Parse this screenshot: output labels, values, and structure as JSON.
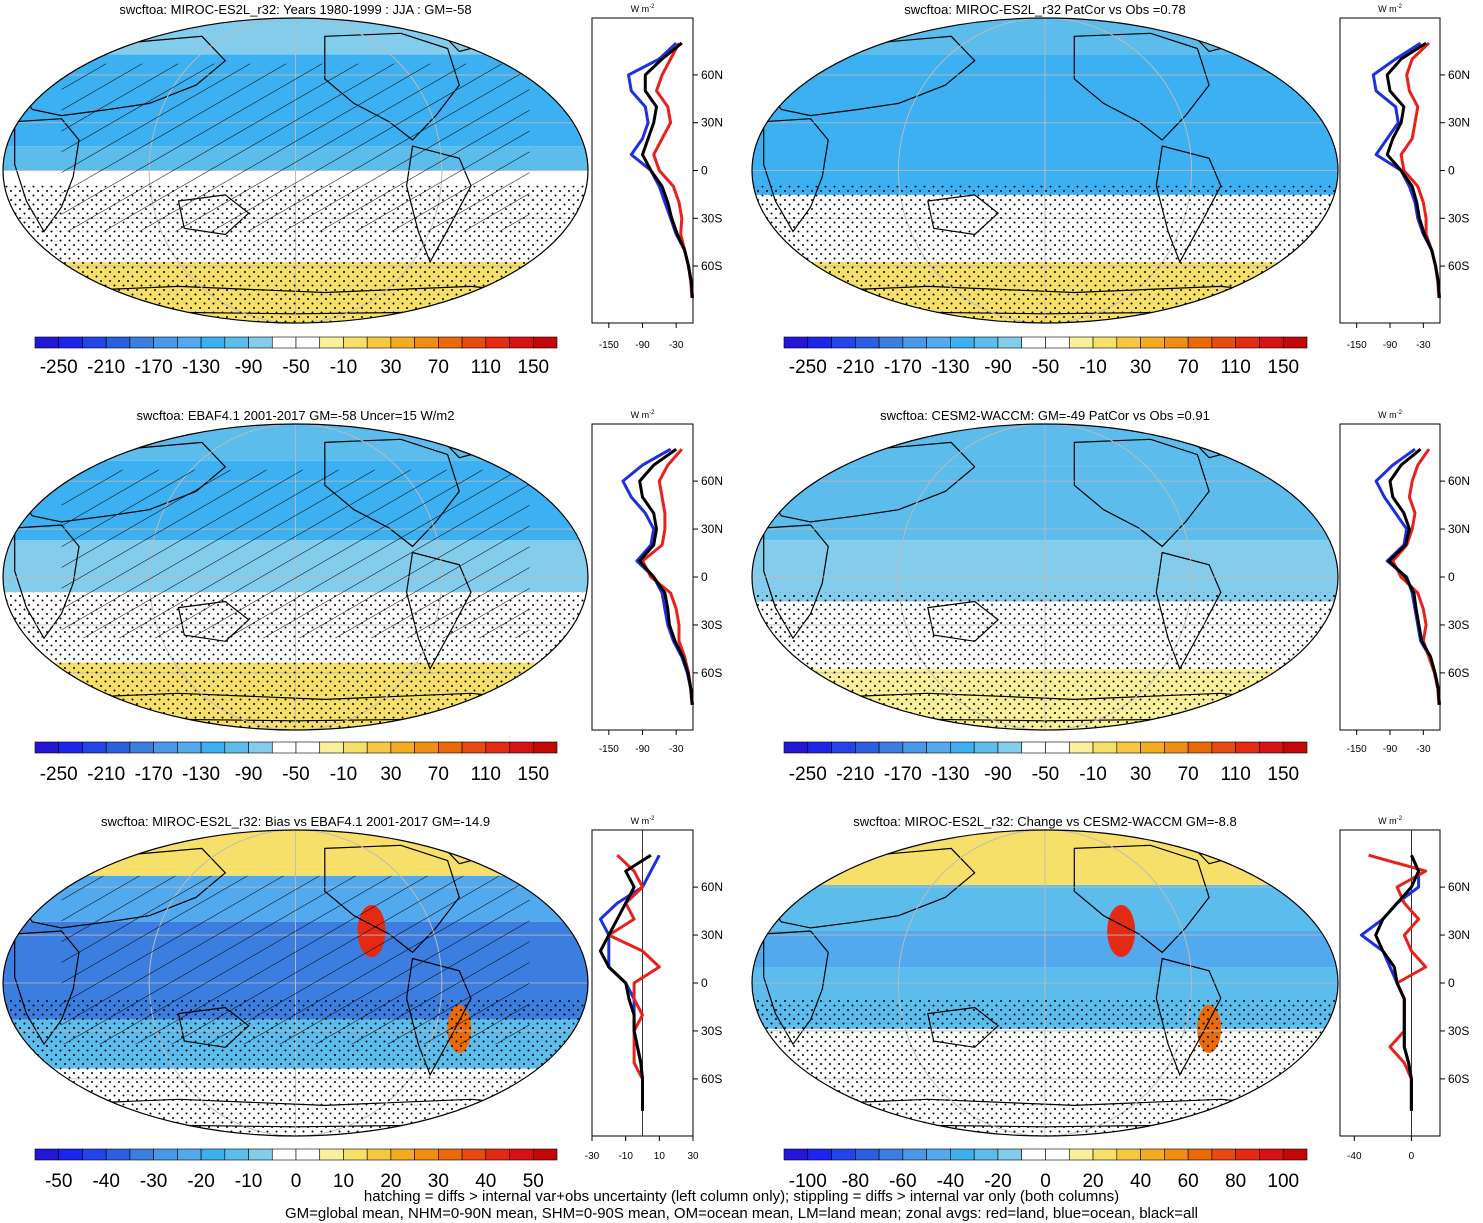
{
  "figure": {
    "footer_lines": [
      "hatching = diffs > internal var+obs uncertainty (left column only); stippling = diffs > internal var only (both columns)",
      "GM=global mean, NHM=0-90N mean, SHM=0-90S mean, OM=ocean mean, LM=land mean; zonal avgs: red=land, blue=ocean, black=all"
    ],
    "colors": {
      "land": "#e8211c",
      "ocean": "#1f2fe0",
      "all": "#000000"
    },
    "zonal_units": "W m",
    "zonal_units_sup": "-2",
    "lat_tick_labels": [
      "60N",
      "30N",
      "0",
      "30S",
      "60S"
    ]
  },
  "chart_data": [
    {
      "type": "heatmap",
      "title": "swcftoa: MIROC-ES2L_r32: Years 1980-1999 : JJA : GM=-58",
      "colorbar_labels": [
        "-250",
        "-210",
        "-170",
        "-130",
        "-90",
        "-50",
        "-10",
        "30",
        "70",
        "110",
        "150"
      ],
      "colorbar_range": [
        -270,
        170
      ],
      "zonal_xticks": [
        "-150",
        "-90",
        "-30"
      ],
      "zonal_xrange": [
        -180,
        0
      ],
      "lats": [
        80,
        70,
        60,
        50,
        40,
        30,
        20,
        10,
        0,
        -10,
        -20,
        -30,
        -40,
        -50,
        -60,
        -70,
        -80
      ],
      "zonal_land": [
        -25,
        -40,
        -55,
        -65,
        -45,
        -40,
        -55,
        -70,
        -60,
        -35,
        -25,
        -20,
        -22,
        -15,
        -8,
        -4,
        -2
      ],
      "zonal_ocean": [
        -30,
        -60,
        -115,
        -110,
        -85,
        -80,
        -90,
        -110,
        -75,
        -60,
        -50,
        -40,
        -30,
        -15,
        -8,
        -3,
        -1
      ],
      "zonal_all": [
        -20,
        -55,
        -85,
        -85,
        -65,
        -70,
        -80,
        -90,
        -75,
        -55,
        -45,
        -38,
        -28,
        -15,
        -8,
        -3,
        -1
      ],
      "stipple": true,
      "hatch": true,
      "bias": false
    },
    {
      "type": "heatmap",
      "title": "swcftoa: MIROC-ES2L_r32 PatCor vs Obs =0.78",
      "colorbar_labels": [
        "-250",
        "-210",
        "-170",
        "-130",
        "-90",
        "-50",
        "-10",
        "30",
        "70",
        "110",
        "150"
      ],
      "colorbar_range": [
        -270,
        170
      ],
      "zonal_xticks": [
        "-150",
        "-90",
        "-30"
      ],
      "zonal_xrange": [
        -180,
        0
      ],
      "lats": [
        80,
        70,
        60,
        50,
        40,
        30,
        20,
        10,
        0,
        -10,
        -20,
        -30,
        -40,
        -50,
        -60,
        -70,
        -80
      ],
      "zonal_land": [
        -20,
        -50,
        -60,
        -55,
        -40,
        -45,
        -50,
        -70,
        -65,
        -40,
        -30,
        -25,
        -25,
        -15,
        -8,
        -4,
        -2
      ],
      "zonal_ocean": [
        -35,
        -80,
        -120,
        -115,
        -80,
        -75,
        -95,
        -115,
        -70,
        -55,
        -45,
        -40,
        -30,
        -15,
        -8,
        -3,
        -1
      ],
      "zonal_all": [
        -25,
        -70,
        -95,
        -90,
        -65,
        -70,
        -85,
        -95,
        -70,
        -50,
        -42,
        -37,
        -28,
        -15,
        -8,
        -3,
        -1
      ],
      "stipple": true,
      "hatch": false,
      "bias": false
    },
    {
      "type": "heatmap",
      "title": "swcftoa: EBAF4.1 2001-2017 GM=-58 Uncer=15 W/m2",
      "colorbar_labels": [
        "-250",
        "-210",
        "-170",
        "-130",
        "-90",
        "-50",
        "-10",
        "30",
        "70",
        "110",
        "150"
      ],
      "colorbar_range": [
        -270,
        170
      ],
      "zonal_xticks": [
        "-150",
        "-90",
        "-30"
      ],
      "zonal_xrange": [
        -180,
        0
      ],
      "lats": [
        80,
        70,
        60,
        50,
        40,
        30,
        20,
        10,
        0,
        -10,
        -20,
        -30,
        -40,
        -50,
        -60,
        -70,
        -80
      ],
      "zonal_land": [
        -20,
        -45,
        -60,
        -55,
        -50,
        -50,
        -55,
        -90,
        -75,
        -40,
        -30,
        -25,
        -25,
        -15,
        -8,
        -4,
        -2
      ],
      "zonal_ocean": [
        -40,
        -90,
        -125,
        -110,
        -85,
        -70,
        -75,
        -100,
        -70,
        -55,
        -50,
        -45,
        -35,
        -20,
        -10,
        -4,
        -1
      ],
      "zonal_all": [
        -30,
        -70,
        -95,
        -90,
        -70,
        -65,
        -70,
        -95,
        -70,
        -50,
        -45,
        -42,
        -32,
        -18,
        -9,
        -4,
        -1
      ],
      "stipple": true,
      "hatch": true,
      "bias": false
    },
    {
      "type": "heatmap",
      "title": "swcftoa: CESM2-WACCM: GM=-49 PatCor vs Obs =0.91",
      "colorbar_labels": [
        "-250",
        "-210",
        "-170",
        "-130",
        "-90",
        "-50",
        "-10",
        "30",
        "70",
        "110",
        "150"
      ],
      "colorbar_range": [
        -270,
        170
      ],
      "zonal_xticks": [
        "-150",
        "-90",
        "-30"
      ],
      "zonal_xrange": [
        -180,
        0
      ],
      "lats": [
        80,
        70,
        60,
        50,
        40,
        30,
        20,
        10,
        0,
        -10,
        -20,
        -30,
        -40,
        -50,
        -60,
        -70,
        -80
      ],
      "zonal_land": [
        -20,
        -40,
        -50,
        -55,
        -45,
        -50,
        -60,
        -85,
        -70,
        -40,
        -30,
        -25,
        -30,
        -20,
        -10,
        -4,
        -2
      ],
      "zonal_ocean": [
        -45,
        -85,
        -115,
        -100,
        -80,
        -60,
        -65,
        -95,
        -60,
        -50,
        -45,
        -40,
        -35,
        -18,
        -9,
        -3,
        -1
      ],
      "zonal_all": [
        -35,
        -70,
        -90,
        -85,
        -65,
        -55,
        -62,
        -92,
        -62,
        -47,
        -43,
        -38,
        -33,
        -17,
        -9,
        -3,
        -1
      ],
      "stipple": true,
      "hatch": false,
      "bias": false
    },
    {
      "type": "heatmap",
      "title": "swcftoa: MIROC-ES2L_r32: Bias vs EBAF4.1 2001-2017 GM=-14.9",
      "colorbar_labels": [
        "-50",
        "-40",
        "-30",
        "-20",
        "-10",
        "0",
        "10",
        "20",
        "30",
        "40",
        "50"
      ],
      "colorbar_range": [
        -55,
        55
      ],
      "zonal_xticks": [
        "-30",
        "-10",
        "10",
        "30"
      ],
      "zonal_xrange": [
        -30,
        30
      ],
      "lats": [
        80,
        70,
        60,
        50,
        40,
        30,
        20,
        10,
        0,
        -10,
        -20,
        -30,
        -40,
        -50,
        -60,
        -70,
        -80
      ],
      "zonal_land": [
        -15,
        -5,
        0,
        -10,
        -5,
        -20,
        0,
        10,
        -5,
        -5,
        0,
        -5,
        -5,
        -5,
        0,
        0,
        0
      ],
      "zonal_ocean": [
        10,
        5,
        0,
        -15,
        -25,
        -20,
        -20,
        -20,
        -10,
        -5,
        -5,
        -5,
        -3,
        -1,
        0,
        0,
        0
      ],
      "zonal_all": [
        5,
        -10,
        -5,
        -10,
        -15,
        -20,
        -25,
        -20,
        -10,
        -8,
        -5,
        -5,
        -3,
        -1,
        0,
        0,
        0
      ],
      "stipple": true,
      "hatch": true,
      "bias": true
    },
    {
      "type": "heatmap",
      "title": "swcftoa: MIROC-ES2L_r32: Change vs CESM2-WACCM GM=-8.8",
      "colorbar_labels": [
        "-100",
        "-80",
        "-60",
        "-40",
        "-20",
        "0",
        "20",
        "40",
        "60",
        "80",
        "100"
      ],
      "colorbar_range": [
        -110,
        110
      ],
      "zonal_xticks": [
        "-40",
        "0"
      ],
      "zonal_xrange": [
        -50,
        20
      ],
      "lats": [
        80,
        70,
        60,
        50,
        40,
        30,
        20,
        10,
        0,
        -10,
        -20,
        -30,
        -40,
        -50,
        -60,
        -70,
        -80
      ],
      "zonal_land": [
        -30,
        10,
        -10,
        -5,
        5,
        -5,
        0,
        10,
        -10,
        -5,
        -5,
        -5,
        -15,
        -5,
        0,
        0,
        0
      ],
      "zonal_ocean": [
        0,
        5,
        5,
        -10,
        -20,
        -35,
        -20,
        -15,
        -10,
        -5,
        -5,
        -5,
        -5,
        -2,
        0,
        0,
        0
      ],
      "zonal_all": [
        0,
        5,
        0,
        -10,
        -20,
        -25,
        -20,
        -12,
        -10,
        -5,
        -5,
        -5,
        -5,
        -2,
        0,
        0,
        0
      ],
      "stipple": true,
      "hatch": false,
      "bias": true
    }
  ]
}
